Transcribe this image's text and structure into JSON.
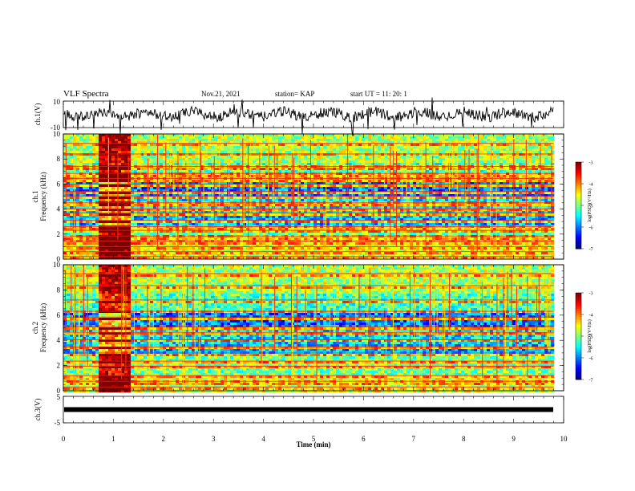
{
  "header": {
    "title": "VLF Spectra",
    "date": "Nov.21, 2021",
    "station": "station= KAP",
    "start_time": "start  UT =   11: 20: 1"
  },
  "chart_data": [
    {
      "type": "line",
      "panel": "ch1-waveform",
      "ylabel": "ch.1(V)",
      "ylim": [
        -10,
        10
      ],
      "yticks": [
        "10",
        "-10"
      ],
      "xlim": [
        0,
        10
      ],
      "line_color": "#000000"
    },
    {
      "type": "heatmap",
      "panel": "ch1-spectrogram",
      "ylabel": "ch.1\nFrequency (kHz)",
      "ylim": [
        0,
        10
      ],
      "yticks": [
        "0",
        "2",
        "4",
        "6",
        "8",
        "10"
      ],
      "xlim": [
        0,
        10
      ],
      "data_end_min": 9.8,
      "colorbar": {
        "min": -7,
        "max": -3,
        "ticks": [
          "-3",
          "-4",
          "-5",
          "-6",
          "-7"
        ],
        "label": "log(PSD)(V²/Hz)"
      },
      "bands_khz": [
        0.2,
        0.6,
        1.0,
        1.45,
        1.85,
        2.3,
        2.6,
        3.1,
        3.7,
        4.0,
        4.5,
        5.05,
        5.4,
        6.0,
        6.45,
        6.85,
        7.4,
        8.4,
        9.25
      ],
      "burst_min": [
        0.7,
        1.3
      ]
    },
    {
      "type": "heatmap",
      "panel": "ch2-spectrogram",
      "ylabel": "ch.2\nFrequency (kHz)",
      "ylim": [
        0,
        10
      ],
      "yticks": [
        "0",
        "2",
        "4",
        "6",
        "8",
        "10"
      ],
      "xlim": [
        0,
        10
      ],
      "data_end_min": 9.8,
      "colorbar": {
        "min": -7,
        "max": -3,
        "ticks": [
          "-3",
          "-4",
          "-5",
          "-6",
          "-7"
        ],
        "label": "log(PSD)(V²/Hz)"
      },
      "bands_khz": [
        0.3,
        0.75,
        1.2,
        1.95,
        2.35,
        3.0,
        3.45,
        4.05,
        4.6,
        5.1,
        5.85,
        6.3,
        7.2,
        8.35,
        9.3
      ],
      "burst_min": [
        0.7,
        1.3
      ]
    },
    {
      "type": "line",
      "panel": "ch3-waveform",
      "ylabel": "ch.3(V)",
      "ylim": [
        -5,
        5
      ],
      "yticks": [
        "5",
        "-5"
      ],
      "xlim": [
        0,
        10
      ],
      "line_color": "#000000"
    }
  ],
  "x_axis": {
    "label": "Time  (min)",
    "ticks": [
      "0",
      "1",
      "2",
      "3",
      "4",
      "5",
      "6",
      "7",
      "8",
      "9",
      "10"
    ]
  }
}
